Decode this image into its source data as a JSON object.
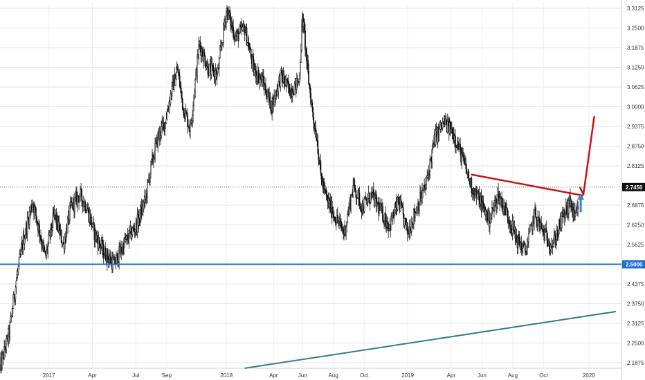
{
  "chart_data": {
    "type": "candlestick",
    "x_axis_labels": [
      "2017",
      "Apr",
      "Jul",
      "Sep",
      "2018",
      "Apr",
      "Jun",
      "Aug",
      "Oct",
      "2019",
      "Apr",
      "Jun",
      "Aug",
      "Oct",
      "2020"
    ],
    "y_tick_labels": [
      "3.3125",
      "3.2500",
      "3.1875",
      "3.1250",
      "3.0625",
      "3.0000",
      "2.9375",
      "2.8750",
      "2.8125",
      "2.6875",
      "2.6250",
      "2.5625",
      "2.4375",
      "2.3750",
      "2.3125",
      "2.2500",
      "2.1875"
    ],
    "ylim": [
      2.17,
      3.33
    ],
    "last_price": {
      "value": 2.745,
      "label": "2.7450"
    },
    "support_level": {
      "value": 2.5,
      "label": "2.5000",
      "color": "#1f6fd0"
    },
    "price_path": [
      [
        2016.75,
        2.17
      ],
      [
        2016.8,
        2.28
      ],
      [
        2016.84,
        2.45
      ],
      [
        2016.88,
        2.58
      ],
      [
        2016.93,
        2.7
      ],
      [
        2016.97,
        2.6
      ],
      [
        2017.0,
        2.52
      ],
      [
        2017.05,
        2.66
      ],
      [
        2017.1,
        2.56
      ],
      [
        2017.14,
        2.68
      ],
      [
        2017.19,
        2.72
      ],
      [
        2017.23,
        2.68
      ],
      [
        2017.27,
        2.6
      ],
      [
        2017.32,
        2.54
      ],
      [
        2017.38,
        2.5
      ],
      [
        2017.44,
        2.57
      ],
      [
        2017.5,
        2.62
      ],
      [
        2017.55,
        2.7
      ],
      [
        2017.58,
        2.8
      ],
      [
        2017.62,
        2.9
      ],
      [
        2017.66,
        2.95
      ],
      [
        2017.7,
        3.06
      ],
      [
        2017.73,
        3.12
      ],
      [
        2017.76,
        3.0
      ],
      [
        2017.8,
        2.93
      ],
      [
        2017.85,
        3.2
      ],
      [
        2017.9,
        3.12
      ],
      [
        2017.95,
        3.1
      ],
      [
        2018.0,
        3.31
      ],
      [
        2018.05,
        3.22
      ],
      [
        2018.1,
        3.25
      ],
      [
        2018.15,
        3.12
      ],
      [
        2018.2,
        3.08
      ],
      [
        2018.25,
        3.0
      ],
      [
        2018.3,
        3.1
      ],
      [
        2018.35,
        3.05
      ],
      [
        2018.4,
        3.08
      ],
      [
        2018.42,
        3.29
      ],
      [
        2018.45,
        3.1
      ],
      [
        2018.48,
        2.96
      ],
      [
        2018.5,
        2.9
      ],
      [
        2018.52,
        2.78
      ],
      [
        2018.55,
        2.71
      ],
      [
        2018.6,
        2.65
      ],
      [
        2018.65,
        2.6
      ],
      [
        2018.7,
        2.75
      ],
      [
        2018.75,
        2.68
      ],
      [
        2018.8,
        2.72
      ],
      [
        2018.85,
        2.67
      ],
      [
        2018.9,
        2.62
      ],
      [
        2018.95,
        2.7
      ],
      [
        2019.0,
        2.6
      ],
      [
        2019.05,
        2.68
      ],
      [
        2019.1,
        2.75
      ],
      [
        2019.15,
        2.9
      ],
      [
        2019.2,
        2.95
      ],
      [
        2019.25,
        2.92
      ],
      [
        2019.3,
        2.84
      ],
      [
        2019.35,
        2.75
      ],
      [
        2019.4,
        2.7
      ],
      [
        2019.45,
        2.64
      ],
      [
        2019.5,
        2.72
      ],
      [
        2019.55,
        2.66
      ],
      [
        2019.6,
        2.58
      ],
      [
        2019.65,
        2.54
      ],
      [
        2019.7,
        2.66
      ],
      [
        2019.75,
        2.6
      ],
      [
        2019.8,
        2.56
      ],
      [
        2019.85,
        2.64
      ],
      [
        2019.9,
        2.7
      ],
      [
        2019.92,
        2.64
      ],
      [
        2019.94,
        2.67
      ]
    ],
    "annotations": {
      "red_trendline": {
        "from": [
          2019.35,
          2.785
        ],
        "to": [
          2019.97,
          2.718
        ],
        "color": "#cc1111"
      },
      "red_projection": [
        [
          2019.95,
          2.745
        ],
        [
          2019.97,
          2.722
        ],
        [
          2020.03,
          2.97
        ]
      ],
      "blue_arrow": {
        "x": 2019.955,
        "from": 2.665,
        "to": 2.72,
        "color": "#3a7fd0"
      },
      "long_trendline": {
        "from": [
          2018.1,
          2.17
        ],
        "to": [
          2020.15,
          2.35
        ],
        "color": "#2f7f86"
      }
    }
  }
}
